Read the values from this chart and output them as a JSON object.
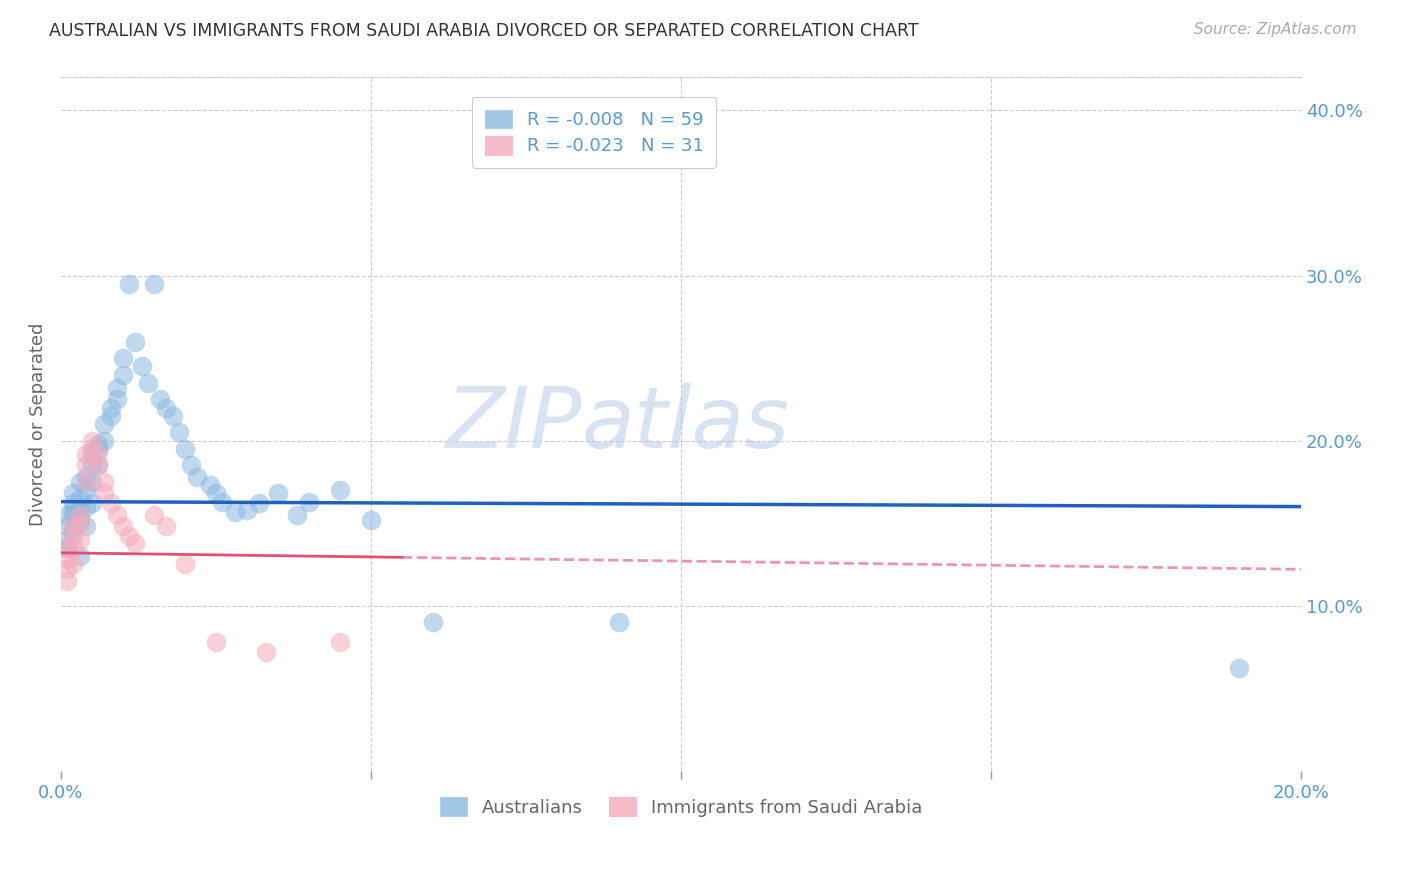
{
  "title": "AUSTRALIAN VS IMMIGRANTS FROM SAUDI ARABIA DIVORCED OR SEPARATED CORRELATION CHART",
  "source": "Source: ZipAtlas.com",
  "ylabel": "Divorced or Separated",
  "xlim": [
    0.0,
    0.2
  ],
  "ylim": [
    0.0,
    0.42
  ],
  "xtick_positions": [
    0.0,
    0.05,
    0.1,
    0.15,
    0.2
  ],
  "xtick_labels": [
    "0.0%",
    "",
    "",
    "",
    "20.0%"
  ],
  "yticks_right": [
    0.1,
    0.2,
    0.3,
    0.4
  ],
  "ytick_labels_right": [
    "10.0%",
    "20.0%",
    "30.0%",
    "40.0%"
  ],
  "blue_R": -0.008,
  "blue_N": 59,
  "pink_R": -0.023,
  "pink_N": 31,
  "legend_label_blue": "Australians",
  "legend_label_pink": "Immigrants from Saudi Arabia",
  "blue_color": "#8BB8E0",
  "pink_color": "#F4AABC",
  "blue_line_color": "#2060C0",
  "pink_line_color": "#E05070",
  "axis_color": "#5599DD",
  "watermark_zip": "ZIP",
  "watermark_atlas": "atlas",
  "blue_line_y0": 0.163,
  "blue_line_y1": 0.16,
  "pink_line_y0": 0.132,
  "pink_line_y1": 0.122,
  "blue_scatter_x": [
    0.001,
    0.001,
    0.001,
    0.001,
    0.002,
    0.002,
    0.002,
    0.002,
    0.002,
    0.003,
    0.003,
    0.003,
    0.003,
    0.003,
    0.004,
    0.004,
    0.004,
    0.004,
    0.005,
    0.005,
    0.005,
    0.005,
    0.006,
    0.006,
    0.006,
    0.007,
    0.007,
    0.008,
    0.008,
    0.009,
    0.009,
    0.01,
    0.01,
    0.011,
    0.012,
    0.013,
    0.014,
    0.015,
    0.016,
    0.017,
    0.018,
    0.019,
    0.02,
    0.021,
    0.022,
    0.024,
    0.025,
    0.026,
    0.028,
    0.03,
    0.032,
    0.035,
    0.038,
    0.04,
    0.045,
    0.05,
    0.06,
    0.09,
    0.19
  ],
  "blue_scatter_y": [
    0.155,
    0.148,
    0.14,
    0.135,
    0.162,
    0.168,
    0.155,
    0.145,
    0.158,
    0.175,
    0.165,
    0.158,
    0.152,
    0.13,
    0.17,
    0.178,
    0.16,
    0.148,
    0.185,
    0.192,
    0.175,
    0.162,
    0.198,
    0.195,
    0.185,
    0.21,
    0.2,
    0.22,
    0.215,
    0.225,
    0.232,
    0.24,
    0.25,
    0.295,
    0.26,
    0.245,
    0.235,
    0.295,
    0.225,
    0.22,
    0.215,
    0.205,
    0.195,
    0.185,
    0.178,
    0.173,
    0.168,
    0.163,
    0.157,
    0.158,
    0.162,
    0.168,
    0.155,
    0.163,
    0.17,
    0.152,
    0.09,
    0.09,
    0.062
  ],
  "pink_scatter_x": [
    0.001,
    0.001,
    0.001,
    0.001,
    0.002,
    0.002,
    0.002,
    0.002,
    0.003,
    0.003,
    0.003,
    0.004,
    0.004,
    0.004,
    0.005,
    0.005,
    0.006,
    0.006,
    0.007,
    0.007,
    0.008,
    0.009,
    0.01,
    0.011,
    0.012,
    0.015,
    0.017,
    0.02,
    0.025,
    0.033,
    0.045
  ],
  "pink_scatter_y": [
    0.135,
    0.128,
    0.122,
    0.115,
    0.148,
    0.142,
    0.135,
    0.125,
    0.155,
    0.15,
    0.14,
    0.192,
    0.185,
    0.175,
    0.2,
    0.195,
    0.192,
    0.185,
    0.175,
    0.168,
    0.162,
    0.155,
    0.148,
    0.142,
    0.138,
    0.155,
    0.148,
    0.125,
    0.078,
    0.072,
    0.078
  ]
}
